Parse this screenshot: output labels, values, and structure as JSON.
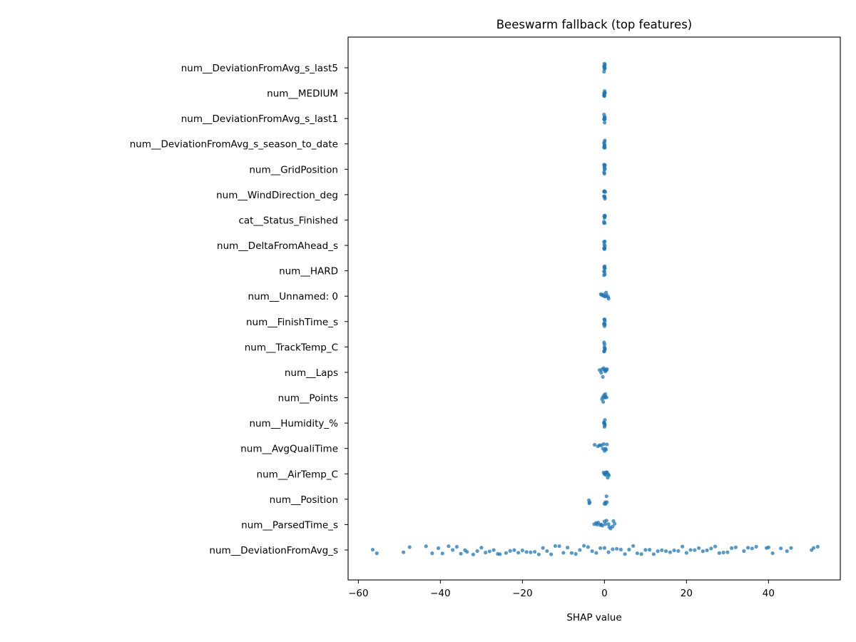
{
  "chart_data": {
    "type": "scatter",
    "subtype": "beeswarm",
    "title": "Beeswarm fallback (top features)",
    "xlabel": "SHAP value",
    "ylabel": "",
    "xlim": [
      -62.5,
      57.5
    ],
    "xticks": [
      -60,
      -40,
      -20,
      0,
      20,
      40
    ],
    "xtick_labels": [
      "−60",
      "−40",
      "−20",
      "0",
      "20",
      "40"
    ],
    "grid": false,
    "legend": "none",
    "marker_color": "#1f77b4",
    "categories": [
      "num__DeviationFromAvg_s_last5",
      "num__MEDIUM",
      "num__DeviationFromAvg_s_last1",
      "num__DeviationFromAvg_s_season_to_date",
      "num__GridPosition",
      "num__WindDirection_deg",
      "cat__Status_Finished",
      "num__DeltaFromAhead_s",
      "num__HARD",
      "num__Unnamed: 0",
      "num__FinishTime_s",
      "num__TrackTemp_C",
      "num__Laps",
      "num__Points",
      "num__Humidity_%",
      "num__AvgQualiTime",
      "num__AirTemp_C",
      "num__Position",
      "num__ParsedTime_s",
      "num__DeviationFromAvg_s"
    ],
    "series": [
      {
        "feature": "num__DeviationFromAvg_s_last5",
        "values": [
          -0.1,
          0.0,
          0.1,
          0.05,
          -0.05,
          0.0,
          0.1,
          -0.1
        ]
      },
      {
        "feature": "num__MEDIUM",
        "values": [
          -0.1,
          0.0,
          0.1,
          0.05,
          -0.05,
          0.0,
          0.1,
          -0.1
        ]
      },
      {
        "feature": "num__DeviationFromAvg_s_last1",
        "values": [
          -0.1,
          0.0,
          0.1,
          0.05,
          -0.05,
          0.0,
          0.1,
          -0.1
        ]
      },
      {
        "feature": "num__DeviationFromAvg_s_season_to_date",
        "values": [
          -0.1,
          0.0,
          0.1,
          0.05,
          -0.05,
          0.0,
          0.1,
          -0.1
        ]
      },
      {
        "feature": "num__GridPosition",
        "values": [
          -0.1,
          0.0,
          0.1,
          0.05,
          -0.05,
          0.0,
          0.1,
          -0.1
        ]
      },
      {
        "feature": "num__WindDirection_deg",
        "values": [
          -0.1,
          0.0,
          0.1,
          0.2,
          -0.05,
          0.0,
          0.1,
          -0.1
        ]
      },
      {
        "feature": "cat__Status_Finished",
        "values": [
          -0.1,
          0.0,
          0.1,
          0.05,
          -0.05,
          0.0,
          0.1,
          -0.1
        ]
      },
      {
        "feature": "num__DeltaFromAhead_s",
        "values": [
          -0.1,
          0.0,
          0.1,
          0.05,
          -0.05,
          0.0,
          0.1,
          -0.1
        ]
      },
      {
        "feature": "num__HARD",
        "values": [
          -0.1,
          0.0,
          0.1,
          0.05,
          -0.05,
          0.0,
          0.1,
          -0.1
        ]
      },
      {
        "feature": "num__Unnamed: 0",
        "values": [
          -0.9,
          -0.5,
          0.0,
          0.4,
          0.9,
          -0.2,
          0.2,
          0.6,
          -0.7,
          1.0
        ]
      },
      {
        "feature": "num__FinishTime_s",
        "values": [
          -0.1,
          0.0,
          0.1,
          0.05,
          -0.05,
          0.0,
          0.1,
          -0.1
        ]
      },
      {
        "feature": "num__TrackTemp_C",
        "values": [
          -0.1,
          0.0,
          0.1,
          0.05,
          -0.05,
          0.0,
          0.1,
          -0.1
        ]
      },
      {
        "feature": "num__Laps",
        "values": [
          -1.2,
          -0.8,
          -0.4,
          0.0,
          0.3,
          0.5,
          -0.2,
          0.2,
          -0.6,
          0.6
        ]
      },
      {
        "feature": "num__Points",
        "values": [
          -0.6,
          -0.3,
          0.0,
          0.3,
          0.5,
          -0.1,
          0.2,
          -0.4
        ]
      },
      {
        "feature": "num__Humidity_%",
        "values": [
          -0.1,
          0.0,
          0.1,
          0.05,
          -0.05,
          0.0,
          0.1,
          -0.1
        ]
      },
      {
        "feature": "num__AvgQualiTime",
        "values": [
          -2.4,
          -1.6,
          -0.8,
          -0.4,
          0.0,
          0.4,
          0.6,
          -0.2,
          0.2,
          -1.2
        ]
      },
      {
        "feature": "num__AirTemp_C",
        "values": [
          -0.2,
          0.0,
          0.3,
          0.6,
          0.9,
          1.1,
          0.1,
          0.5,
          0.8,
          0.4
        ]
      },
      {
        "feature": "num__Position",
        "values": [
          -3.8,
          -3.6,
          -3.7,
          0.0,
          0.3,
          0.6,
          0.2,
          0.5
        ]
      },
      {
        "feature": "num__ParsedTime_s",
        "values": [
          -2.5,
          -2.0,
          -1.5,
          -1.0,
          -0.5,
          0.0,
          0.5,
          1.0,
          1.5,
          2.0,
          2.5,
          -1.8,
          -0.8,
          0.2,
          1.2,
          2.2
        ]
      },
      {
        "feature": "num__DeviationFromAvg_s",
        "values": [
          -56.5,
          -55.5,
          -49,
          -47.5,
          -43.5,
          -42,
          -40.5,
          -39.5,
          -38,
          -37,
          -36,
          -35,
          -34,
          -33.5,
          -32,
          -31,
          -30,
          -29,
          -28,
          -27,
          -26,
          -25.5,
          -24,
          -23,
          -22,
          -21,
          -20,
          -19,
          -18,
          -17,
          -16,
          -15,
          -14,
          -13,
          -12,
          -11,
          -10,
          -9,
          -8,
          -7,
          -6,
          -5,
          -4,
          -3,
          -2,
          -1,
          0,
          1,
          2,
          3,
          4,
          5,
          6,
          7,
          8,
          9,
          10,
          11,
          12,
          13,
          14,
          15,
          16,
          17,
          18,
          19,
          20,
          21,
          22,
          23,
          24,
          25,
          26,
          27,
          28,
          29,
          30,
          31,
          32,
          34,
          35,
          36,
          37,
          39.5,
          40,
          41,
          43,
          44.5,
          45.5,
          50.5,
          51,
          52
        ]
      }
    ]
  }
}
